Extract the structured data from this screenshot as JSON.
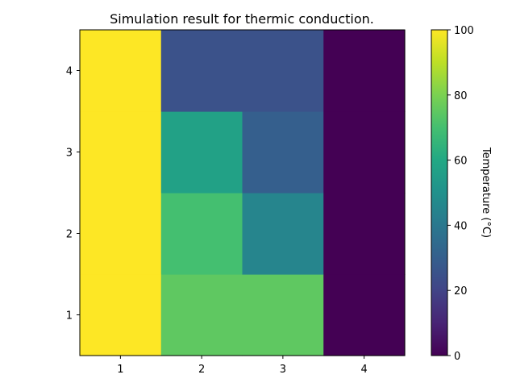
{
  "chart_data": {
    "type": "heatmap",
    "title": "Simulation result for thermic conduction.",
    "x_ticks": [
      "1",
      "2",
      "3",
      "4"
    ],
    "y_ticks": [
      "1",
      "2",
      "3",
      "4"
    ],
    "grid": false,
    "colormap": "viridis",
    "colorbar": {
      "label": "Temperature (°C)",
      "range": [
        0,
        100
      ],
      "ticks": [
        "0",
        "20",
        "40",
        "60",
        "80",
        "100"
      ]
    },
    "values": [
      [
        100,
        75,
        75,
        0
      ],
      [
        100,
        70,
        45,
        0
      ],
      [
        100,
        57,
        30,
        0
      ],
      [
        100,
        25,
        25,
        0
      ]
    ]
  }
}
